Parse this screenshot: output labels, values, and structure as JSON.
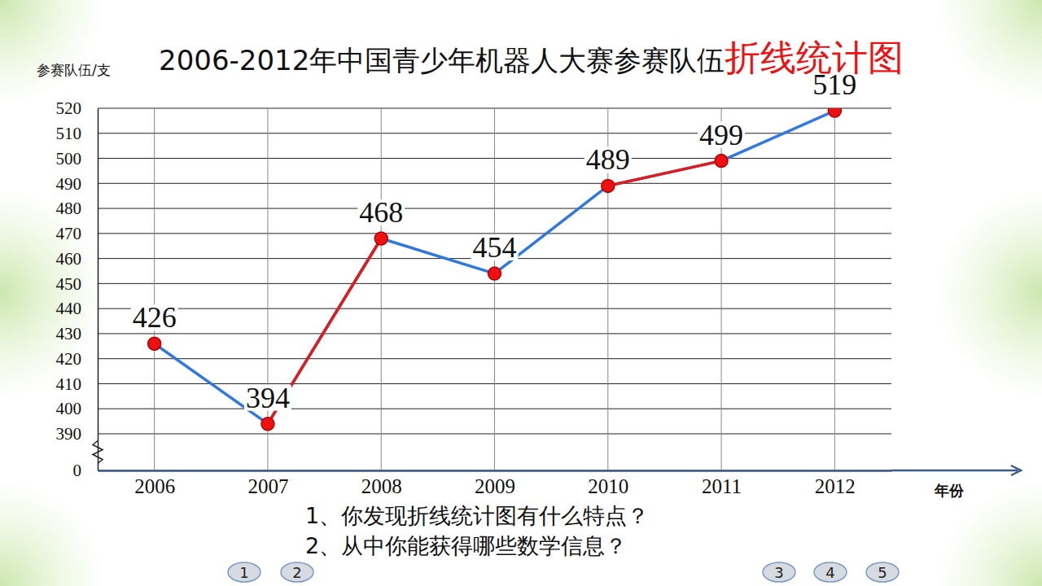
{
  "chart_data": {
    "type": "line",
    "title": [
      "2006-2012年中国青少年机器人大赛参赛队伍",
      "折线统计图"
    ],
    "x_label": "年份",
    "y_label": "参赛队伍/支",
    "categories": [
      "2006",
      "2007",
      "2008",
      "2009",
      "2010",
      "2011",
      "2012"
    ],
    "series": [
      {
        "type": "line",
        "color": "#2f78e0",
        "marker": "none",
        "values": [
          426,
          394,
          468,
          454,
          489,
          499,
          519
        ]
      },
      {
        "type": "line",
        "color": "#e01b1b",
        "marker": "none",
        "values": [
          null,
          394,
          468,
          null,
          489,
          499,
          null
        ]
      },
      {
        "type": "scatter",
        "color": "#ee1111",
        "marker": "circle",
        "data_labels": true,
        "values": [
          426,
          394,
          468,
          454,
          489,
          499,
          519
        ]
      }
    ],
    "ylim": [
      0,
      520
    ],
    "yticks": [
      0,
      390,
      400,
      410,
      420,
      430,
      440,
      450,
      460,
      470,
      480,
      490,
      500,
      510,
      520
    ],
    "grid": true,
    "annotations": [
      "1、你发现折线统计图有什么特点？",
      "2、从中你能获得哪些数学信息？"
    ]
  },
  "buttons": [
    "1",
    "2",
    "3",
    "4",
    "5"
  ]
}
